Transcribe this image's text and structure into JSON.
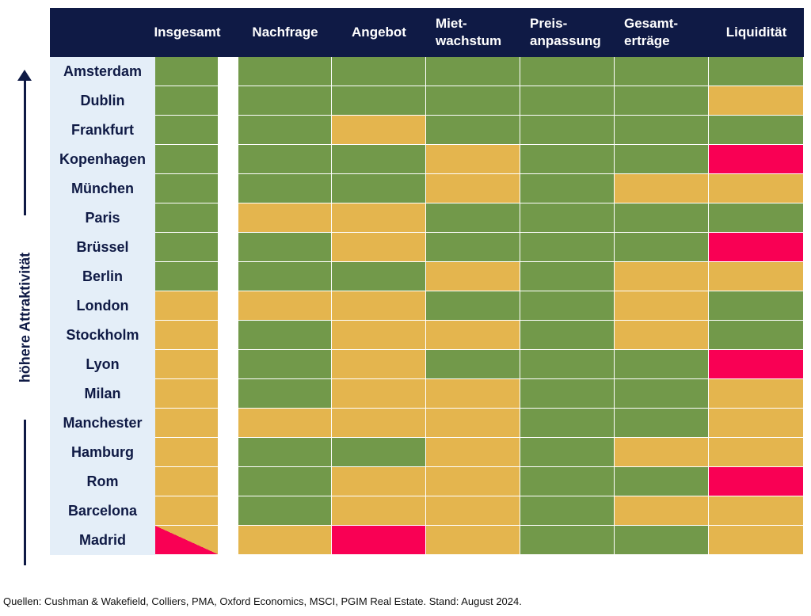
{
  "side_label": "höhere Attraktivität",
  "columns": [
    {
      "label": "Insgesamt"
    },
    {
      "label": "Nachfrage"
    },
    {
      "label": "Angebot"
    },
    {
      "label": "Miet-\nwachstum"
    },
    {
      "label": "Preis-\nanpassung"
    },
    {
      "label": "Gesamt-\nerträge"
    },
    {
      "label": "Liquidität"
    }
  ],
  "colors": {
    "green": "#72994a",
    "amber": "#e4b54e",
    "red": "#f90054",
    "header": "#0f1a45",
    "panel": "#e4eef8"
  },
  "chart_data": {
    "type": "heatmap",
    "columns": [
      "Insgesamt",
      "Nachfrage",
      "Angebot",
      "Miet-wachstum",
      "Preis-anpassung",
      "Gesamt-erträge",
      "Liquidität"
    ],
    "rows": [
      {
        "city": "Amsterdam",
        "values": [
          "green",
          "green",
          "green",
          "green",
          "green",
          "green",
          "green"
        ]
      },
      {
        "city": "Dublin",
        "values": [
          "green",
          "green",
          "green",
          "green",
          "green",
          "green",
          "amber"
        ]
      },
      {
        "city": "Frankfurt",
        "values": [
          "green",
          "green",
          "amber",
          "green",
          "green",
          "green",
          "green"
        ]
      },
      {
        "city": "Kopenhagen",
        "values": [
          "green",
          "green",
          "green",
          "amber",
          "green",
          "green",
          "red"
        ]
      },
      {
        "city": "München",
        "values": [
          "green",
          "green",
          "green",
          "amber",
          "green",
          "amber",
          "amber"
        ]
      },
      {
        "city": "Paris",
        "values": [
          "green",
          "amber",
          "amber",
          "green",
          "green",
          "green",
          "green"
        ]
      },
      {
        "city": "Brüssel",
        "values": [
          "green",
          "green",
          "amber",
          "green",
          "green",
          "green",
          "red"
        ]
      },
      {
        "city": "Berlin",
        "values": [
          "green",
          "green",
          "green",
          "amber",
          "green",
          "amber",
          "amber"
        ]
      },
      {
        "city": "London",
        "values": [
          "amber",
          "amber",
          "amber",
          "green",
          "green",
          "amber",
          "green"
        ]
      },
      {
        "city": "Stockholm",
        "values": [
          "amber",
          "green",
          "amber",
          "amber",
          "green",
          "amber",
          "green"
        ]
      },
      {
        "city": "Lyon",
        "values": [
          "amber",
          "green",
          "amber",
          "green",
          "green",
          "green",
          "red"
        ]
      },
      {
        "city": "Milan",
        "values": [
          "amber",
          "green",
          "amber",
          "amber",
          "green",
          "green",
          "amber"
        ]
      },
      {
        "city": "Manchester",
        "values": [
          "amber",
          "amber",
          "amber",
          "amber",
          "green",
          "green",
          "amber"
        ]
      },
      {
        "city": "Hamburg",
        "values": [
          "amber",
          "green",
          "green",
          "amber",
          "green",
          "amber",
          "amber"
        ]
      },
      {
        "city": "Rom",
        "values": [
          "amber",
          "green",
          "amber",
          "amber",
          "green",
          "green",
          "red"
        ]
      },
      {
        "city": "Barcelona",
        "values": [
          "amber",
          "green",
          "amber",
          "amber",
          "green",
          "amber",
          "amber"
        ]
      },
      {
        "city": "Madrid",
        "values": [
          "red/amber",
          "amber",
          "red",
          "amber",
          "green",
          "green",
          "amber"
        ]
      }
    ],
    "legend": "none"
  },
  "footer": "Quellen: Cushman & Wakefield, Colliers, PMA, Oxford Economics, MSCI, PGIM Real Estate. Stand: August 2024."
}
